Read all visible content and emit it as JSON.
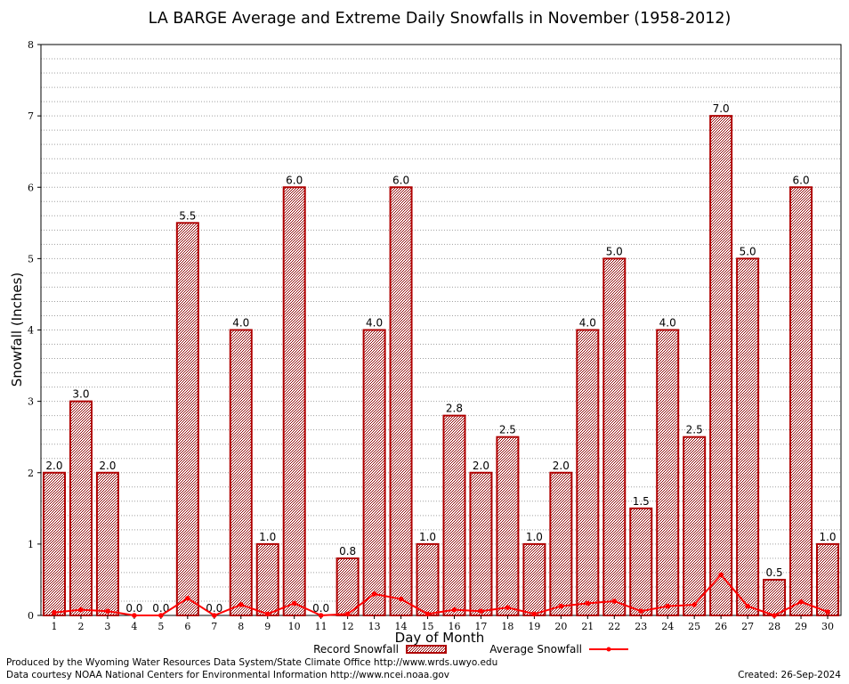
{
  "chart_data": {
    "type": "bar",
    "title": "LA BARGE Average and Extreme Daily Snowfalls in November (1958-2012)",
    "xlabel": "Day of Month",
    "ylabel": "Snowfall (Inches)",
    "ylim": [
      0,
      8
    ],
    "yticks": [
      "0",
      "1",
      "2",
      "3",
      "4",
      "5",
      "6",
      "7",
      "8"
    ],
    "grid": true,
    "categories": [
      "1",
      "2",
      "3",
      "4",
      "5",
      "6",
      "7",
      "8",
      "9",
      "10",
      "11",
      "12",
      "13",
      "14",
      "15",
      "16",
      "17",
      "18",
      "19",
      "20",
      "21",
      "22",
      "23",
      "24",
      "25",
      "26",
      "27",
      "28",
      "29",
      "30"
    ],
    "series": [
      {
        "name": "Record Snowfall",
        "type": "bar",
        "values": [
          2.0,
          3.0,
          2.0,
          0.0,
          0.0,
          5.5,
          0.0,
          4.0,
          1.0,
          6.0,
          0.0,
          0.8,
          4.0,
          6.0,
          1.0,
          2.8,
          2.0,
          2.5,
          1.0,
          2.0,
          4.0,
          5.0,
          1.5,
          4.0,
          2.5,
          7.0,
          5.0,
          0.5,
          6.0,
          1.0
        ],
        "labels": [
          "2.0",
          "3.0",
          "2.0",
          "0.0",
          "0.0",
          "5.5",
          "0.0",
          "4.0",
          "1.0",
          "6.0",
          "0.0",
          "0.8",
          "4.0",
          "6.0",
          "1.0",
          "2.8",
          "2.0",
          "2.5",
          "1.0",
          "2.0",
          "4.0",
          "5.0",
          "1.5",
          "4.0",
          "2.5",
          "7.0",
          "5.0",
          "0.5",
          "6.0",
          "1.0"
        ]
      },
      {
        "name": "Average Snowfall",
        "type": "line",
        "values": [
          0.04,
          0.08,
          0.06,
          0.0,
          0.0,
          0.24,
          0.0,
          0.15,
          0.02,
          0.17,
          0.0,
          0.02,
          0.3,
          0.23,
          0.02,
          0.08,
          0.06,
          0.11,
          0.02,
          0.13,
          0.17,
          0.2,
          0.06,
          0.13,
          0.15,
          0.57,
          0.13,
          0.0,
          0.19,
          0.05
        ]
      }
    ],
    "legend": {
      "position": "bottom-center",
      "bar_label": "Record Snowfall",
      "line_label": "Average Snowfall"
    },
    "colors": {
      "bar_stroke": "#b00000",
      "bar_fill": "#8b0000",
      "line": "#ff0000",
      "grid": "#a0a0a0"
    }
  },
  "footer": {
    "produced_by": "Produced by the Wyoming Water Resources Data System/State Climate Office http://www.wrds.uwyo.edu",
    "courtesy": "Data courtesy NOAA National Centers for Environmental Information http://www.ncei.noaa.gov",
    "created": "Created:  26-Sep-2024"
  }
}
